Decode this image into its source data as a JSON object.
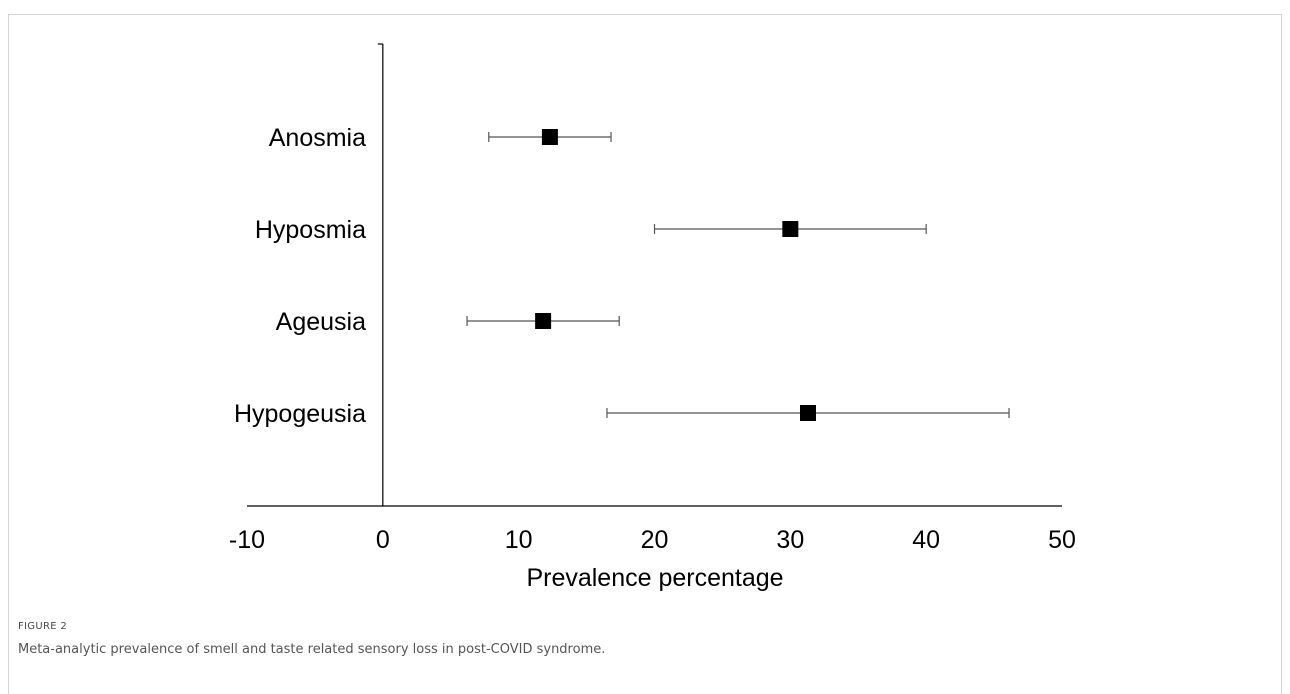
{
  "figure": {
    "label": "FIGURE 2",
    "caption": "Meta-analytic prevalence of smell and taste related sensory loss in post-COVID syndrome."
  },
  "chart_data": {
    "type": "forest",
    "title": "",
    "xlabel": "Prevalence percentage",
    "ylabel": "",
    "xlim": [
      -10,
      50
    ],
    "xticks": [
      -10,
      0,
      10,
      20,
      30,
      40,
      50
    ],
    "grid": false,
    "legend": "none",
    "marker_color": "#000000",
    "errorbar_color": "#555555",
    "series": [
      {
        "label": "Anosmia",
        "estimate": 12.3,
        "ci_low": 7.8,
        "ci_high": 16.8
      },
      {
        "label": "Hyposmia",
        "estimate": 30.0,
        "ci_low": 20.0,
        "ci_high": 40.0
      },
      {
        "label": "Ageusia",
        "estimate": 11.8,
        "ci_low": 6.2,
        "ci_high": 17.4
      },
      {
        "label": "Hypogeusia",
        "estimate": 31.3,
        "ci_low": 16.5,
        "ci_high": 46.1
      }
    ]
  }
}
